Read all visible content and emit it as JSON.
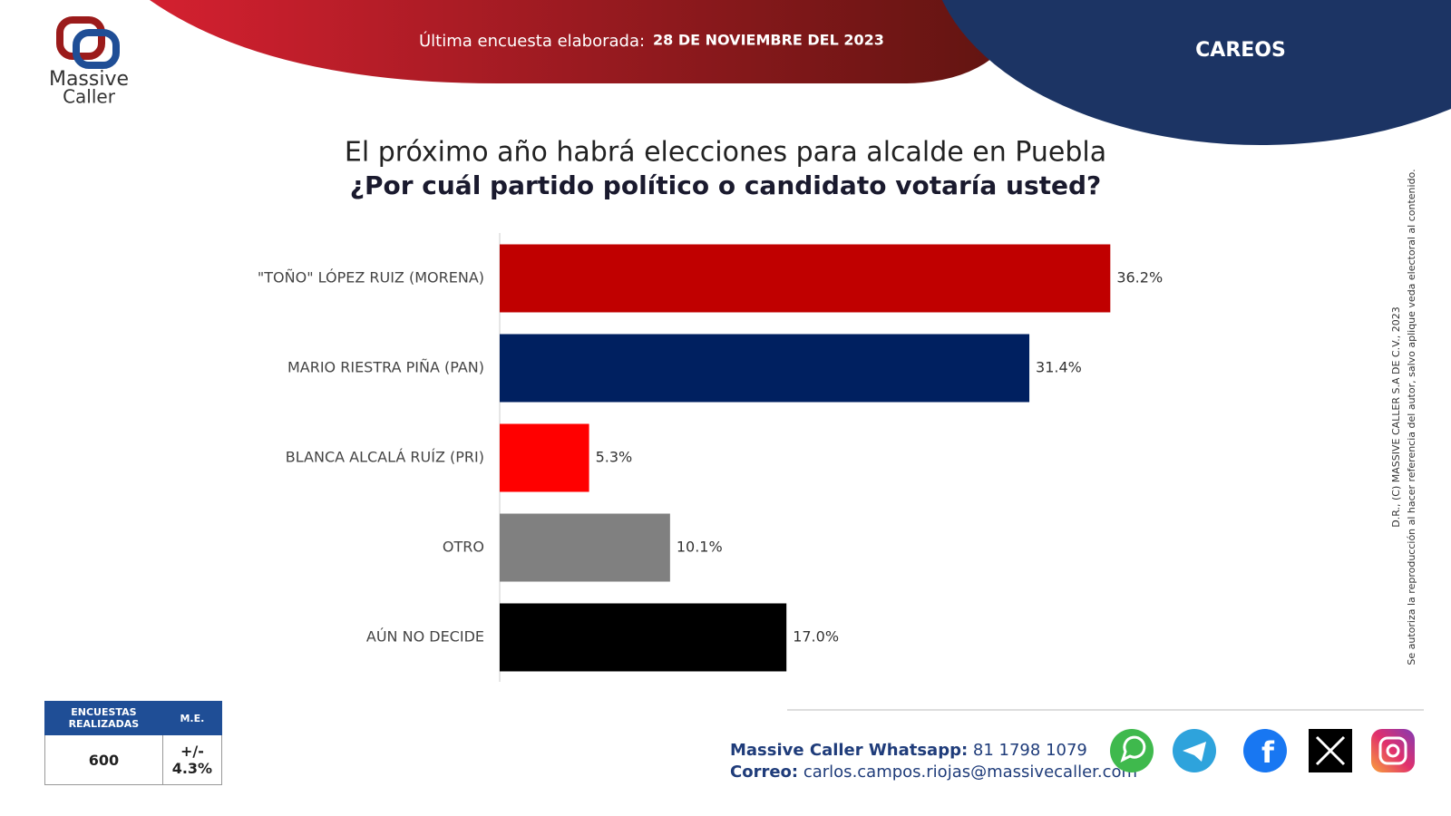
{
  "header": {
    "label": "Última encuesta elaborada:",
    "date": "28 DE NOVIEMBRE DEL 2023",
    "section": "CAREOS"
  },
  "logo": {
    "lines": [
      "Massive",
      "Caller"
    ]
  },
  "chart_data": {
    "type": "bar",
    "orientation": "horizontal",
    "title": "El próximo año habrá elecciones para alcalde en Puebla",
    "subtitle": "¿Por cuál partido político o candidato votaría usted?",
    "categories": [
      "\"TOÑO\" LÓPEZ RUIZ (MORENA)",
      "MARIO RIESTRA PIÑA (PAN)",
      "BLANCA ALCALÁ RUÍZ (PRI)",
      "OTRO",
      "AÚN NO DECIDE"
    ],
    "values": [
      36.2,
      31.4,
      5.3,
      10.1,
      17.0
    ],
    "value_labels": [
      "36.2%",
      "31.4%",
      "5.3%",
      "10.1%",
      "17.0%"
    ],
    "colors": [
      "#c00000",
      "#002060",
      "#ff0000",
      "#808080",
      "#000000"
    ]
  },
  "disclaimer": [
    "D.R., (C) MASSIVE CALLER S.A DE C.V., 2023",
    "Se autoriza la reproducción al hacer referencia del autor, salvo aplique veda electoral al contenido."
  ],
  "table": {
    "headers": [
      "ENCUESTAS REALIZADAS",
      "M.E."
    ],
    "rows": [
      [
        "600",
        "+/- 4.3%"
      ]
    ]
  },
  "footer": {
    "whatsapp_label": "Massive Caller Whatsapp:",
    "whatsapp": "81 1798 1079",
    "email_label": "Correo:",
    "email": "carlos.campos.riojas@massivecaller.com"
  }
}
